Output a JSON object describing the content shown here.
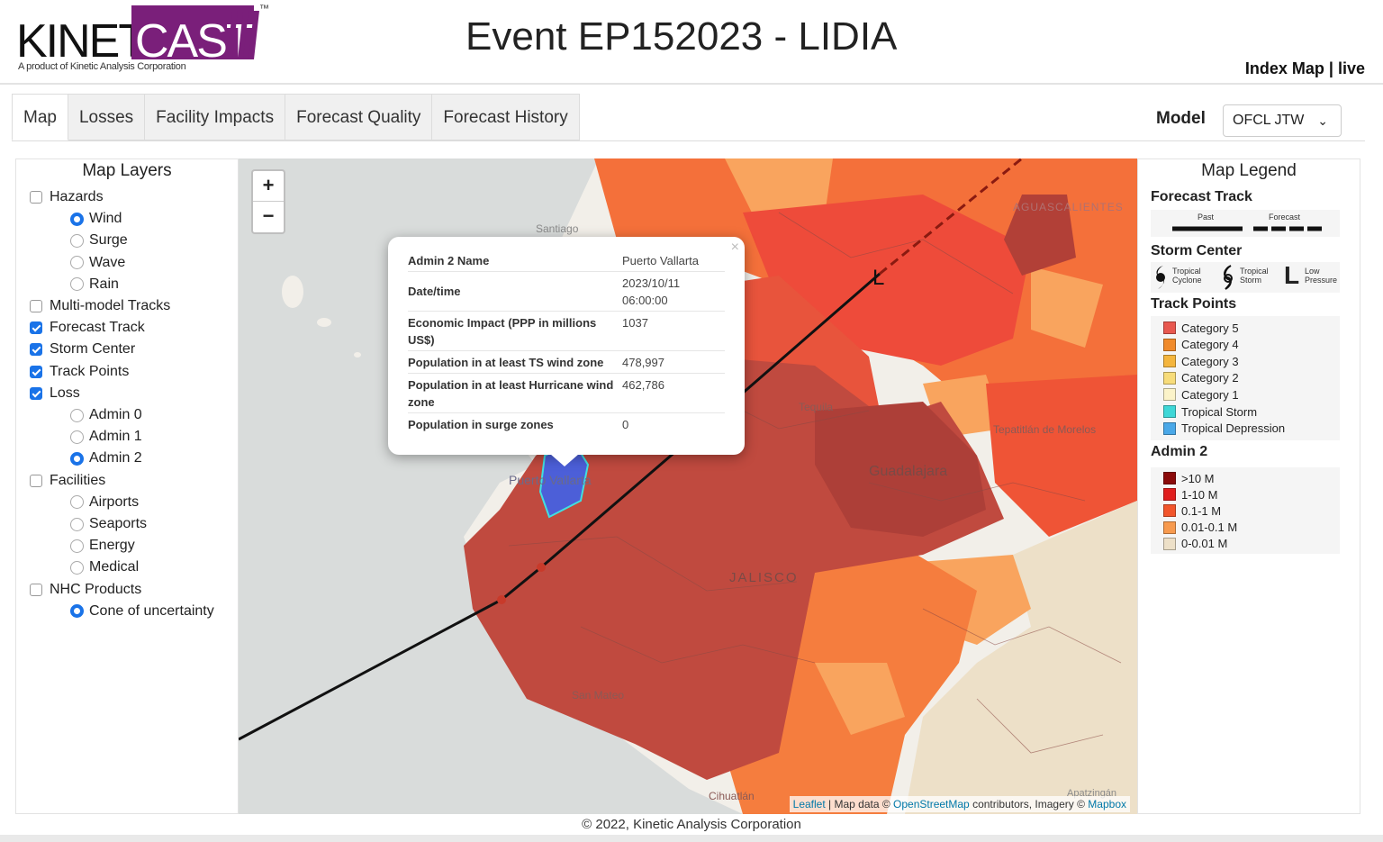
{
  "header": {
    "logo_word_1": "KINETI",
    "logo_word_2": "CAST",
    "logo_tm": "™",
    "logo_subtitle": "A product of Kinetic Analysis Corporation",
    "event_title": "Event EP152023 - LIDIA",
    "index_map_link": "Index Map",
    "separator": "|",
    "live_link": "live"
  },
  "tabs": [
    {
      "label": "Map",
      "active": true
    },
    {
      "label": "Losses",
      "active": false
    },
    {
      "label": "Facility Impacts",
      "active": false
    },
    {
      "label": "Forecast Quality",
      "active": false
    },
    {
      "label": "Forecast History",
      "active": false
    }
  ],
  "model": {
    "label": "Model",
    "selected": "OFCL JTW",
    "chevron_icon": "chevron-down-icon"
  },
  "map_layers": {
    "title": "Map Layers",
    "items": [
      {
        "label": "Hazards",
        "control": "checkbox",
        "checked": false,
        "level": 0
      },
      {
        "label": "Wind",
        "control": "radio",
        "checked": true,
        "level": 1
      },
      {
        "label": "Surge",
        "control": "radio",
        "checked": false,
        "level": 1
      },
      {
        "label": "Wave",
        "control": "radio",
        "checked": false,
        "level": 1
      },
      {
        "label": "Rain",
        "control": "radio",
        "checked": false,
        "level": 1
      },
      {
        "label": "Multi-model Tracks",
        "control": "checkbox",
        "checked": false,
        "level": 0
      },
      {
        "label": "Forecast Track",
        "control": "checkbox",
        "checked": true,
        "level": 0
      },
      {
        "label": "Storm Center",
        "control": "checkbox",
        "checked": true,
        "level": 0
      },
      {
        "label": "Track Points",
        "control": "checkbox",
        "checked": true,
        "level": 0
      },
      {
        "label": "Loss",
        "control": "checkbox",
        "checked": true,
        "level": 0
      },
      {
        "label": "Admin 0",
        "control": "radio",
        "checked": false,
        "level": 1
      },
      {
        "label": "Admin 1",
        "control": "radio",
        "checked": false,
        "level": 1
      },
      {
        "label": "Admin 2",
        "control": "radio",
        "checked": true,
        "level": 1
      },
      {
        "label": "Facilities",
        "control": "checkbox",
        "checked": false,
        "level": 0
      },
      {
        "label": "Airports",
        "control": "radio",
        "checked": false,
        "level": 1
      },
      {
        "label": "Seaports",
        "control": "radio",
        "checked": false,
        "level": 1
      },
      {
        "label": "Energy",
        "control": "radio",
        "checked": false,
        "level": 1
      },
      {
        "label": "Medical",
        "control": "radio",
        "checked": false,
        "level": 1
      },
      {
        "label": "NHC Products",
        "control": "checkbox",
        "checked": false,
        "level": 0
      },
      {
        "label": "Cone of uncertainty",
        "control": "radio",
        "checked": true,
        "level": 1
      }
    ]
  },
  "map": {
    "zoom_in": "+",
    "zoom_out": "−",
    "place_labels": {
      "santiago": "Santiago",
      "puerto_vallarta": "Puerto Vallarta",
      "guadalajara": "Guadalajara",
      "jalisco": "JALISCO",
      "aguascalientes": "AGUASCALIENTES",
      "tequila": "Tequila",
      "tepatitlan": "Tepatitlán de Morelos",
      "san_mateo": "San Mateo",
      "cihuatlan": "Cihuatlán",
      "apatzingan": "Apatzingán"
    },
    "storm_label": "L",
    "popup": {
      "close": "×",
      "rows": [
        {
          "key": "Admin 2 Name",
          "value": "Puerto Vallarta"
        },
        {
          "key": "Date/time",
          "value": "2023/10/11 06:00:00"
        },
        {
          "key": "Economic Impact (PPP in millions US$)",
          "value": "1037"
        },
        {
          "key": "Population in at least TS wind zone",
          "value": "478,997"
        },
        {
          "key": "Population in at least Hurricane wind zone",
          "value": "462,786"
        },
        {
          "key": "Population in surge zones",
          "value": "0"
        }
      ]
    },
    "attribution": {
      "leaflet": "Leaflet",
      "sep": " | Map data © ",
      "osm": "OpenStreetMap",
      "mid": " contributors, Imagery © ",
      "mapbox": "Mapbox"
    }
  },
  "legend": {
    "title": "Map Legend",
    "forecast_track": {
      "title": "Forecast Track",
      "past": "Past",
      "forecast": "Forecast"
    },
    "storm_center": {
      "title": "Storm Center",
      "tropical_cyclone": "Tropical Cyclone",
      "tropical_storm": "Tropical Storm",
      "low_pressure": "Low Pressure",
      "low_symbol": "L"
    },
    "track_points": {
      "title": "Track Points",
      "items": [
        {
          "label": "Category 5",
          "color": "#e8584f"
        },
        {
          "label": "Category 4",
          "color": "#f08a2a"
        },
        {
          "label": "Category 3",
          "color": "#f4b53d"
        },
        {
          "label": "Category 2",
          "color": "#f7dc7a"
        },
        {
          "label": "Category 1",
          "color": "#fbf3c9"
        },
        {
          "label": "Tropical Storm",
          "color": "#3ed7d7"
        },
        {
          "label": "Tropical Depression",
          "color": "#4aa8e8"
        }
      ]
    },
    "admin2": {
      "title": "Admin 2",
      "items": [
        {
          "label": ">10 M",
          "color": "#8b0a0a"
        },
        {
          "label": "1-10 M",
          "color": "#e01e1e"
        },
        {
          "label": "0.1-1 M",
          "color": "#f2552b"
        },
        {
          "label": "0.01-0.1 M",
          "color": "#f79a4e"
        },
        {
          "label": "0-0.01 M",
          "color": "#ede0c8"
        }
      ]
    }
  },
  "footer": {
    "text": "© 2022, Kinetic Analysis Corporation"
  }
}
